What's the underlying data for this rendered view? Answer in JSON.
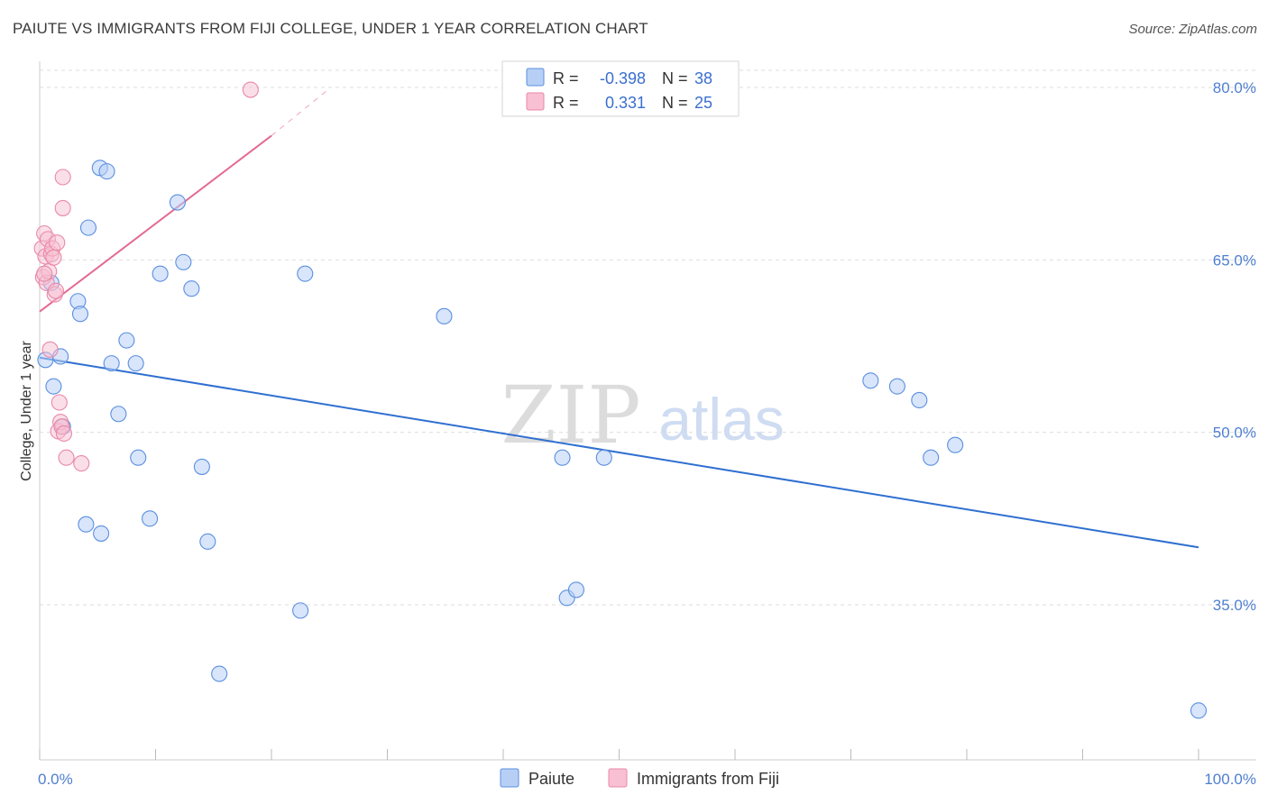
{
  "title": "PAIUTE VS IMMIGRANTS FROM FIJI COLLEGE, UNDER 1 YEAR CORRELATION CHART",
  "source": "Source: ZipAtlas.com",
  "colors": {
    "paiute_fill": "#b8cff5",
    "paiute_stroke": "#5b8fe0",
    "paiute_line": "#2f6fd0",
    "fiji_fill": "#f8c0d2",
    "fiji_stroke": "#e889a8",
    "fiji_line": "#e36a93",
    "tick_label": "#4f7fd0",
    "grid": "#dddddd"
  },
  "watermark": {
    "zip": "ZIP",
    "atlas": "atlas"
  },
  "legend": {
    "rows": [
      {
        "r_label": "R =",
        "r_value": "-0.398",
        "n_label": "N =",
        "n_value": "38"
      },
      {
        "r_label": "R =",
        "r_value": "0.331",
        "n_label": "N =",
        "n_value": "25"
      }
    ]
  },
  "chart_data": {
    "type": "scatter",
    "title": "PAIUTE VS IMMIGRANTS FROM FIJI COLLEGE, UNDER 1 YEAR CORRELATION CHART",
    "xlabel": "",
    "ylabel": "College, Under 1 year",
    "xlim": [
      0,
      100
    ],
    "ylim": [
      21,
      82
    ],
    "x_tick_labels": [
      "0.0%",
      "100.0%"
    ],
    "y_ticks": [
      35,
      50,
      65,
      80
    ],
    "y_tick_labels": [
      "35.0%",
      "50.0%",
      "65.0%",
      "80.0%"
    ],
    "grid": true,
    "legend_position": "top-center",
    "series": [
      {
        "name": "Paiute",
        "R": -0.398,
        "N": 38,
        "points": [
          [
            0.5,
            56.3
          ],
          [
            1.0,
            63.0
          ],
          [
            1.2,
            54.0
          ],
          [
            1.8,
            56.6
          ],
          [
            2.0,
            50.5
          ],
          [
            3.3,
            61.4
          ],
          [
            3.5,
            60.3
          ],
          [
            4.0,
            42.0
          ],
          [
            4.2,
            67.8
          ],
          [
            5.2,
            73.0
          ],
          [
            5.3,
            41.2
          ],
          [
            5.8,
            72.7
          ],
          [
            6.2,
            56.0
          ],
          [
            6.8,
            51.6
          ],
          [
            7.5,
            58.0
          ],
          [
            8.3,
            56.0
          ],
          [
            8.5,
            47.8
          ],
          [
            9.5,
            42.5
          ],
          [
            10.4,
            63.8
          ],
          [
            11.9,
            70.0
          ],
          [
            12.4,
            64.8
          ],
          [
            13.1,
            62.5
          ],
          [
            14.0,
            47.0
          ],
          [
            14.5,
            40.5
          ],
          [
            15.5,
            29.0
          ],
          [
            22.5,
            34.5
          ],
          [
            22.9,
            63.8
          ],
          [
            34.9,
            60.1
          ],
          [
            45.1,
            47.8
          ],
          [
            45.5,
            35.6
          ],
          [
            46.3,
            36.3
          ],
          [
            48.7,
            47.8
          ],
          [
            71.7,
            54.5
          ],
          [
            74.0,
            54.0
          ],
          [
            75.9,
            52.8
          ],
          [
            76.9,
            47.8
          ],
          [
            79.0,
            48.9
          ],
          [
            100.0,
            25.8
          ]
        ],
        "trendline": {
          "x": [
            0,
            100
          ],
          "y": [
            56.5,
            40.0
          ]
        }
      },
      {
        "name": "Immigrants from Fiji",
        "R": 0.331,
        "N": 25,
        "points": [
          [
            0.2,
            66.0
          ],
          [
            0.3,
            63.5
          ],
          [
            0.4,
            67.3
          ],
          [
            0.5,
            65.3
          ],
          [
            0.6,
            63.0
          ],
          [
            0.7,
            66.8
          ],
          [
            0.8,
            64.0
          ],
          [
            0.9,
            57.2
          ],
          [
            1.0,
            65.5
          ],
          [
            1.1,
            66.0
          ],
          [
            1.2,
            65.2
          ],
          [
            1.3,
            62.0
          ],
          [
            1.4,
            62.3
          ],
          [
            1.5,
            66.5
          ],
          [
            1.6,
            50.1
          ],
          [
            1.7,
            52.6
          ],
          [
            1.8,
            50.9
          ],
          [
            1.9,
            50.5
          ],
          [
            2.0,
            72.2
          ],
          [
            2.0,
            69.5
          ],
          [
            2.1,
            49.9
          ],
          [
            2.3,
            47.8
          ],
          [
            3.6,
            47.3
          ],
          [
            18.2,
            79.8
          ],
          [
            0.4,
            63.8
          ]
        ],
        "trendline": {
          "x": [
            0,
            20
          ],
          "y": [
            60.5,
            75.8
          ]
        },
        "trendline_dashed": {
          "x": [
            20,
            25
          ],
          "y": [
            75.8,
            79.9
          ]
        }
      }
    ]
  }
}
